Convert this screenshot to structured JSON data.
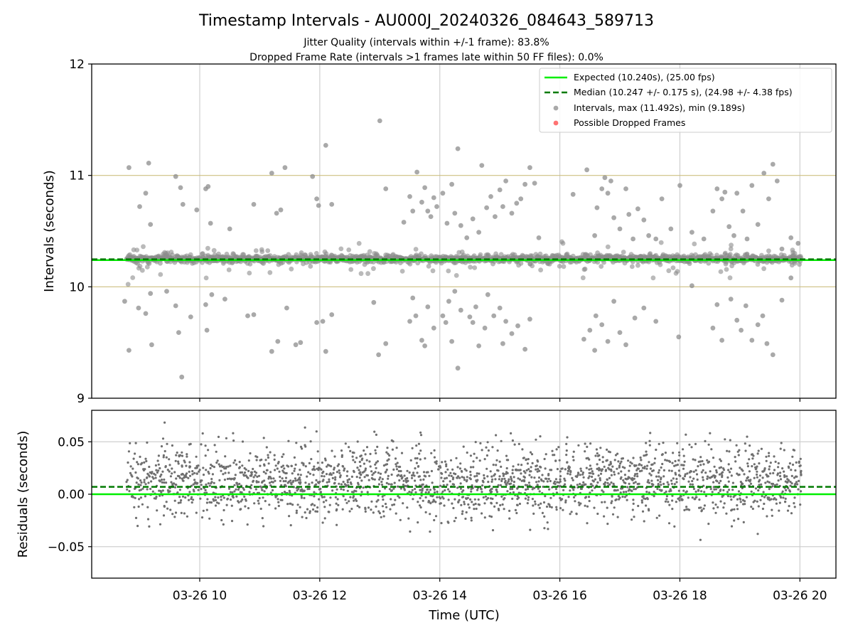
{
  "chart_data": {
    "type": "scatter",
    "title": "Timestamp Intervals - AU000J_20240326_084643_589713",
    "subtitle_lines": [
      "Jitter Quality (intervals within +/-1 frame): 83.8%",
      "Dropped Frame Rate (intervals >1 frames late within 50 FF files): 0.0%"
    ],
    "xlabel": "Time (UTC)",
    "x_ticks": [
      "03-26 10",
      "03-26 12",
      "03-26 14",
      "03-26 16",
      "03-26 18",
      "03-26 20"
    ],
    "x_tick_hours": [
      10,
      12,
      14,
      16,
      18,
      20
    ],
    "x_range_hours": [
      8.2,
      20.6
    ],
    "data_start_hour": 8.78,
    "data_end_hour": 20.02,
    "top_panel": {
      "ylabel": "Intervals (seconds)",
      "ylim": [
        9,
        12
      ],
      "y_ticks": [
        "9",
        "10",
        "11",
        "12"
      ],
      "y_tick_values": [
        9,
        10,
        11,
        12
      ],
      "reference_lines": [
        10,
        11
      ],
      "expected_interval": 10.24,
      "median_interval": 10.247,
      "grid": "vertical"
    },
    "bottom_panel": {
      "ylabel": "Residuals (seconds)",
      "ylim": [
        -0.08,
        0.08
      ],
      "y_ticks": [
        "0.05",
        "0.00",
        "−0.05"
      ],
      "y_tick_values": [
        0.05,
        0.0,
        -0.05
      ],
      "expected_residual": 0.0,
      "median_residual": 0.007,
      "grid": "both"
    },
    "legend": {
      "placement": "top-right",
      "entries": [
        {
          "label": "Expected (10.240s), (25.00 fps)",
          "style": "solid-line",
          "color": "#00ee00"
        },
        {
          "label": "Median (10.247 +/- 0.175 s), (24.98 +/- 4.38 fps)",
          "style": "dashed-line",
          "color": "#007a00"
        },
        {
          "label": "Intervals, max (11.492s), min (9.189s)",
          "style": "marker",
          "color": "#8c8c8c"
        },
        {
          "label": "Possible Dropped Frames",
          "style": "marker",
          "color": "#ff5a5a"
        }
      ]
    },
    "series": [
      {
        "name": "Intervals, max (11.492s), min (9.189s)",
        "outliers": [
          [
            8.82,
            11.07
          ],
          [
            8.9,
            10.26
          ],
          [
            9.0,
            10.72
          ],
          [
            9.1,
            10.84
          ],
          [
            9.15,
            11.11
          ],
          [
            9.18,
            10.56
          ],
          [
            9.45,
            10.23
          ],
          [
            9.6,
            10.99
          ],
          [
            9.68,
            10.89
          ],
          [
            9.72,
            10.74
          ],
          [
            9.95,
            10.69
          ],
          [
            10.1,
            10.88
          ],
          [
            10.14,
            10.9
          ],
          [
            10.18,
            10.57
          ],
          [
            10.5,
            10.52
          ],
          [
            10.9,
            10.74
          ],
          [
            11.2,
            11.02
          ],
          [
            11.28,
            10.66
          ],
          [
            11.35,
            10.69
          ],
          [
            11.42,
            11.07
          ],
          [
            11.88,
            10.99
          ],
          [
            11.95,
            10.79
          ],
          [
            11.98,
            10.73
          ],
          [
            12.1,
            11.27
          ],
          [
            12.2,
            10.74
          ],
          [
            13.0,
            11.49
          ],
          [
            13.1,
            10.88
          ],
          [
            13.4,
            10.58
          ],
          [
            13.5,
            10.81
          ],
          [
            13.55,
            10.68
          ],
          [
            13.62,
            11.03
          ],
          [
            13.7,
            10.76
          ],
          [
            13.75,
            10.89
          ],
          [
            13.8,
            10.68
          ],
          [
            13.85,
            10.63
          ],
          [
            13.9,
            10.8
          ],
          [
            13.95,
            10.72
          ],
          [
            14.05,
            10.84
          ],
          [
            14.12,
            10.57
          ],
          [
            14.2,
            10.92
          ],
          [
            14.25,
            10.66
          ],
          [
            14.3,
            11.24
          ],
          [
            14.35,
            10.55
          ],
          [
            14.45,
            10.44
          ],
          [
            14.55,
            10.61
          ],
          [
            14.65,
            10.49
          ],
          [
            14.7,
            11.09
          ],
          [
            14.78,
            10.71
          ],
          [
            14.85,
            10.81
          ],
          [
            14.92,
            10.63
          ],
          [
            15.0,
            10.87
          ],
          [
            15.05,
            10.72
          ],
          [
            15.1,
            10.95
          ],
          [
            15.2,
            10.66
          ],
          [
            15.28,
            10.75
          ],
          [
            15.35,
            10.79
          ],
          [
            15.42,
            10.92
          ],
          [
            15.5,
            11.07
          ],
          [
            15.58,
            10.93
          ],
          [
            15.65,
            10.44
          ],
          [
            16.22,
            10.83
          ],
          [
            16.45,
            11.05
          ],
          [
            16.58,
            10.46
          ],
          [
            16.62,
            10.71
          ],
          [
            16.7,
            10.88
          ],
          [
            16.75,
            10.98
          ],
          [
            16.8,
            10.84
          ],
          [
            16.85,
            10.95
          ],
          [
            16.9,
            10.62
          ],
          [
            17.0,
            10.52
          ],
          [
            17.1,
            10.88
          ],
          [
            17.15,
            10.65
          ],
          [
            17.22,
            10.43
          ],
          [
            17.3,
            10.7
          ],
          [
            17.4,
            10.6
          ],
          [
            17.48,
            10.46
          ],
          [
            17.6,
            10.43
          ],
          [
            17.7,
            10.79
          ],
          [
            17.85,
            10.52
          ],
          [
            18.0,
            10.91
          ],
          [
            18.2,
            10.49
          ],
          [
            18.4,
            10.43
          ],
          [
            18.55,
            10.68
          ],
          [
            18.62,
            10.88
          ],
          [
            18.7,
            10.79
          ],
          [
            18.75,
            10.85
          ],
          [
            18.82,
            10.54
          ],
          [
            18.9,
            10.46
          ],
          [
            18.95,
            10.84
          ],
          [
            19.05,
            10.68
          ],
          [
            19.12,
            10.43
          ],
          [
            19.2,
            10.91
          ],
          [
            19.3,
            10.56
          ],
          [
            19.4,
            11.02
          ],
          [
            19.48,
            10.79
          ],
          [
            19.55,
            11.1
          ],
          [
            19.62,
            10.95
          ],
          [
            19.7,
            10.34
          ],
          [
            19.85,
            10.44
          ],
          [
            19.97,
            10.39
          ],
          [
            8.75,
            9.87
          ],
          [
            8.82,
            9.43
          ],
          [
            8.98,
            9.81
          ],
          [
            9.1,
            9.76
          ],
          [
            9.18,
            9.94
          ],
          [
            9.2,
            9.48
          ],
          [
            9.45,
            9.96
          ],
          [
            9.6,
            9.83
          ],
          [
            9.65,
            9.59
          ],
          [
            9.7,
            9.19
          ],
          [
            9.85,
            9.73
          ],
          [
            10.1,
            9.84
          ],
          [
            10.12,
            9.61
          ],
          [
            10.2,
            9.93
          ],
          [
            10.42,
            9.89
          ],
          [
            10.8,
            9.74
          ],
          [
            10.9,
            9.75
          ],
          [
            11.2,
            9.42
          ],
          [
            11.3,
            9.51
          ],
          [
            11.45,
            9.81
          ],
          [
            11.6,
            9.48
          ],
          [
            11.68,
            9.5
          ],
          [
            11.95,
            9.68
          ],
          [
            12.05,
            9.69
          ],
          [
            12.1,
            9.42
          ],
          [
            12.2,
            9.75
          ],
          [
            12.9,
            9.86
          ],
          [
            12.98,
            9.39
          ],
          [
            13.1,
            9.49
          ],
          [
            13.5,
            9.69
          ],
          [
            13.55,
            9.9
          ],
          [
            13.6,
            9.74
          ],
          [
            13.7,
            9.52
          ],
          [
            13.75,
            9.47
          ],
          [
            13.8,
            9.82
          ],
          [
            13.9,
            9.63
          ],
          [
            14.05,
            9.74
          ],
          [
            14.1,
            9.68
          ],
          [
            14.15,
            9.87
          ],
          [
            14.2,
            9.51
          ],
          [
            14.25,
            9.96
          ],
          [
            14.3,
            9.27
          ],
          [
            14.35,
            9.79
          ],
          [
            14.5,
            9.73
          ],
          [
            14.55,
            9.68
          ],
          [
            14.6,
            9.82
          ],
          [
            14.65,
            9.47
          ],
          [
            14.75,
            9.63
          ],
          [
            14.8,
            9.93
          ],
          [
            14.9,
            9.74
          ],
          [
            15.0,
            9.81
          ],
          [
            15.05,
            9.49
          ],
          [
            15.1,
            9.69
          ],
          [
            15.2,
            9.58
          ],
          [
            15.3,
            9.65
          ],
          [
            15.42,
            9.44
          ],
          [
            15.5,
            9.71
          ],
          [
            16.4,
            9.53
          ],
          [
            16.5,
            9.61
          ],
          [
            16.58,
            9.43
          ],
          [
            16.6,
            9.74
          ],
          [
            16.7,
            9.66
          ],
          [
            16.8,
            9.51
          ],
          [
            16.9,
            9.87
          ],
          [
            17.0,
            9.59
          ],
          [
            17.1,
            9.48
          ],
          [
            17.25,
            9.72
          ],
          [
            17.4,
            9.81
          ],
          [
            17.6,
            9.69
          ],
          [
            17.98,
            9.55
          ],
          [
            18.2,
            10.01
          ],
          [
            18.55,
            9.63
          ],
          [
            18.62,
            9.84
          ],
          [
            18.7,
            9.52
          ],
          [
            18.85,
            9.89
          ],
          [
            18.95,
            9.7
          ],
          [
            19.02,
            9.61
          ],
          [
            19.1,
            9.83
          ],
          [
            19.2,
            9.52
          ],
          [
            19.3,
            9.66
          ],
          [
            19.38,
            9.74
          ],
          [
            19.45,
            9.49
          ],
          [
            19.55,
            9.39
          ],
          [
            19.7,
            9.88
          ],
          [
            19.85,
            10.08
          ]
        ]
      },
      {
        "name": "Possible Dropped Frames",
        "values": []
      }
    ]
  }
}
